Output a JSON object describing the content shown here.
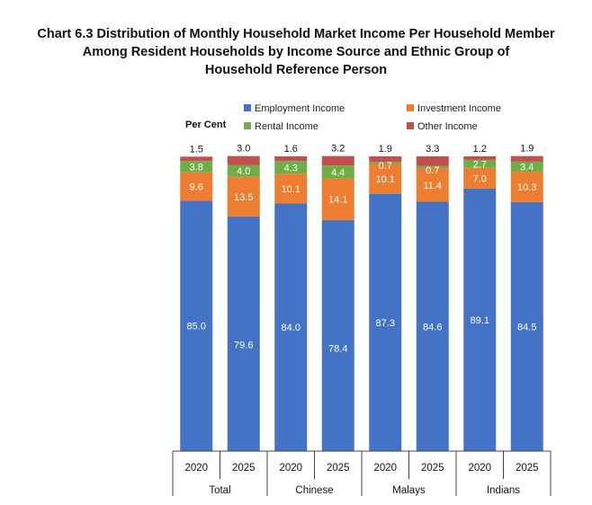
{
  "title_lines": [
    "Chart 6.3  Distribution of Monthly Household Market Income Per Household Member",
    "Among Resident Households by Income Source and Ethnic Group of",
    "Household Reference Person"
  ],
  "colors": {
    "employment": "#4472C4",
    "investment": "#ED7D31",
    "rental": "#70AD47",
    "other": "#C0504D"
  },
  "chart_data": {
    "type": "bar",
    "stacked": true,
    "title": "Chart 6.3  Distribution of Monthly Household Market Income Per Household Member Among Resident Households by Income Source and Ethnic Group of Household Reference Person",
    "ylabel": "Per Cent",
    "ylim": [
      0,
      100
    ],
    "grid": false,
    "legend_position": "top",
    "groups": [
      "Total",
      "Chinese",
      "Malays",
      "Indians"
    ],
    "categories": [
      "2020",
      "2025",
      "2020",
      "2025",
      "2020",
      "2025",
      "2020",
      "2025"
    ],
    "series": [
      {
        "name": "Employment Income",
        "key": "employment",
        "values": [
          85.0,
          79.6,
          84.0,
          78.4,
          87.3,
          84.6,
          89.1,
          84.5
        ],
        "labels": [
          "85.0",
          "79.6",
          "84.0",
          "78.4",
          "87.3",
          "84.6",
          "89.1",
          "84.5"
        ]
      },
      {
        "name": "Investment Income",
        "key": "investment",
        "values": [
          9.6,
          13.5,
          10.1,
          14.1,
          10.1,
          11.4,
          7.0,
          10.3
        ],
        "labels": [
          "9.6",
          "13.5",
          "10.1",
          "14.1",
          "10.1",
          "11.4",
          "7.0",
          "10.3"
        ]
      },
      {
        "name": "Rental Income",
        "key": "rental",
        "values": [
          3.8,
          4.0,
          4.3,
          4.4,
          0.7,
          0.7,
          2.7,
          3.4
        ],
        "labels": [
          "3.8",
          "4.0",
          "4.3",
          "4.4",
          "0.7",
          "0.7",
          "2.7",
          "3.4"
        ]
      },
      {
        "name": "Other Income",
        "key": "other",
        "values": [
          1.5,
          3.0,
          1.6,
          3.2,
          1.9,
          3.3,
          1.2,
          1.9
        ],
        "labels": [
          "1.5",
          "3.0",
          "1.6",
          "3.2",
          "1.9",
          "3.3",
          "1.2",
          "1.9"
        ]
      }
    ]
  }
}
